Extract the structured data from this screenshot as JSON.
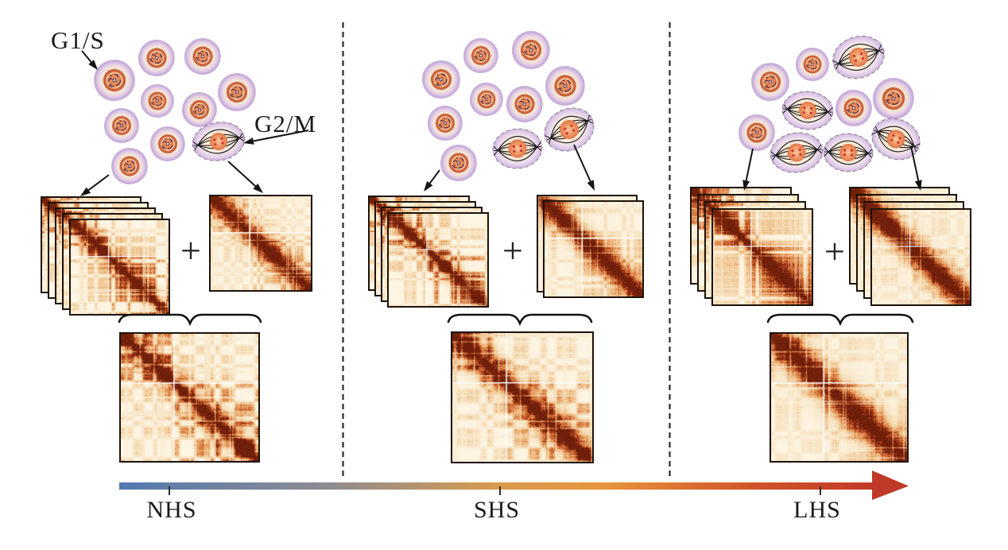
{
  "figure": {
    "background": "#ffffff",
    "labels": {
      "g1s_phase": "G1/S",
      "g2m_phase": "G2/M",
      "plus_sign": "+"
    },
    "axis": {
      "labels": [
        "NHS",
        "SHS",
        "LHS"
      ],
      "gradient_colors": [
        "#5379b0",
        "#8f8c90",
        "#d89a4d",
        "#e8943c",
        "#cf5429",
        "#c23a28"
      ],
      "gradient_offsets": [
        0,
        0.28,
        0.5,
        0.64,
        0.84,
        1
      ],
      "arrowhead_color": "#bf3a28"
    },
    "panels": [
      {
        "condition": "NHS",
        "g1s_cell_count": 9,
        "g2m_cell_count": 1,
        "g1s_matrix_count": 5,
        "g2m_matrix_count": 1
      },
      {
        "condition": "SHS",
        "g1s_cell_count": 8,
        "g2m_cell_count": 2,
        "g1s_matrix_count": 4,
        "g2m_matrix_count": 2
      },
      {
        "condition": "LHS",
        "g1s_cell_count": 5,
        "g2m_cell_count": 5,
        "g1s_matrix_count": 4,
        "g2m_matrix_count": 4
      }
    ],
    "heatmap_palette": [
      "#fdf4e2",
      "#f7e3c0",
      "#efc08b",
      "#e29050",
      "#c95f2e",
      "#9c3414",
      "#701f0b"
    ],
    "cell_colors": {
      "membrane": "#c6abd6",
      "membrane_mid": "#ddc9e8",
      "cytoplasm": "#f9ecdb",
      "nucleus_dark": "#c4603a",
      "nucleus_mid": "#e08350",
      "nucleus_light": "#f5ab7a",
      "chromatin": "#53304e",
      "spindle": "#151515",
      "chromosome_light": "#f9c79b",
      "chromosome_dark": "#e0764a",
      "kinetochore": "#c93333"
    },
    "divider_color": "#2b2b2b"
  }
}
